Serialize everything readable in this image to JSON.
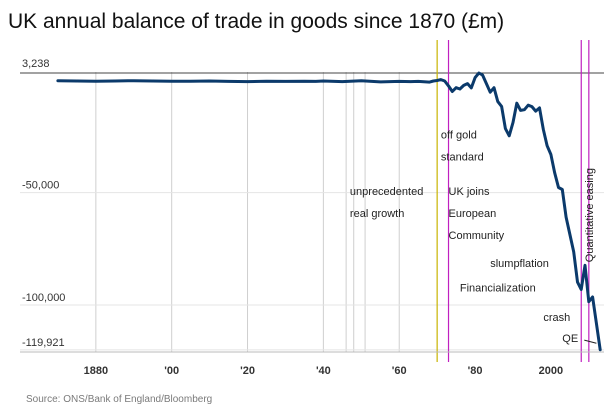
{
  "chart_data": {
    "type": "line",
    "title": "UK annual balance of trade in goods since 1870 (£m)",
    "source": "Source: ONS/Bank of England/Bloomberg",
    "xlabel": "",
    "ylabel": "",
    "xlim": [
      1860,
      2014
    ],
    "ylim": [
      -120000,
      3238
    ],
    "x_ticks": [
      {
        "value": 1880,
        "label": "1880"
      },
      {
        "value": 1900,
        "label": "'00"
      },
      {
        "value": 1920,
        "label": "'20"
      },
      {
        "value": 1940,
        "label": "'40"
      },
      {
        "value": 1960,
        "label": "'60"
      },
      {
        "value": 1980,
        "label": "'80"
      },
      {
        "value": 2000,
        "label": "2000"
      }
    ],
    "y_ticks": [
      {
        "value": 3238,
        "label": "3,238"
      },
      {
        "value": -50000,
        "label": "-50,000"
      },
      {
        "value": -100000,
        "label": "-100,000"
      },
      {
        "value": -119921,
        "label": "-119,921"
      }
    ],
    "grid": {
      "vertical_years": [
        1880,
        1900,
        1920,
        1940,
        1946,
        1948,
        1951,
        1960
      ]
    },
    "reference_lines": [
      {
        "year": 1970,
        "color": "#c8b400"
      },
      {
        "year": 1973,
        "color": "#c020c0"
      },
      {
        "year": 2008,
        "color": "#c020c0"
      },
      {
        "year": 2010,
        "color": "#c020c0"
      }
    ],
    "series": [
      {
        "color": "#0b3a6b",
        "x": [
          1870,
          1875,
          1880,
          1885,
          1890,
          1895,
          1900,
          1905,
          1910,
          1915,
          1920,
          1925,
          1930,
          1935,
          1938,
          1940,
          1945,
          1950,
          1955,
          1960,
          1963,
          1965,
          1967,
          1968,
          1969,
          1970,
          1971,
          1972,
          1973,
          1974,
          1975,
          1976,
          1977,
          1978,
          1979,
          1980,
          1981,
          1982,
          1983,
          1984,
          1985,
          1986,
          1987,
          1988,
          1989,
          1990,
          1991,
          1992,
          1993,
          1994,
          1995,
          1996,
          1997,
          1998,
          1999,
          2000,
          2001,
          2002,
          2003,
          2004,
          2005,
          2006,
          2007,
          2008,
          2009,
          2010,
          2011,
          2012,
          2013
        ],
        "values": [
          -200,
          -300,
          -400,
          -300,
          -200,
          -300,
          -400,
          -400,
          -300,
          -500,
          -600,
          -400,
          -500,
          -400,
          -500,
          -300,
          -600,
          -200,
          -700,
          -500,
          -600,
          -500,
          -700,
          -800,
          -300,
          -100,
          300,
          -300,
          -2500,
          -5000,
          -3300,
          -3900,
          -2300,
          -1500,
          -3400,
          1200,
          3238,
          2300,
          -1500,
          -5300,
          -3300,
          -9500,
          -11600,
          -21500,
          -24700,
          -18800,
          -10200,
          -13400,
          -13100,
          -11100,
          -11700,
          -13700,
          -12300,
          -21800,
          -29100,
          -33000,
          -41200,
          -47700,
          -48600,
          -60900,
          -68600,
          -76300,
          -89800,
          -93100,
          -82300,
          -98500,
          -96400,
          -108100,
          -119921
        ]
      }
    ],
    "annotations": [
      {
        "lines": [
          "off gold",
          "standard"
        ],
        "year": 1971,
        "y": -26000
      },
      {
        "lines": [
          "unprecedented",
          "real  growth"
        ],
        "year": 1947,
        "y": -51000
      },
      {
        "lines": [
          "UK joins",
          "European",
          "Community"
        ],
        "year": 1973,
        "y": -51000
      },
      {
        "lines": [
          "slumpflation"
        ],
        "year": 1984,
        "y": -83000
      },
      {
        "lines": [
          "Financialization"
        ],
        "year": 1976,
        "y": -94000
      },
      {
        "lines": [
          "crash"
        ],
        "year": 1998,
        "y": -107000
      },
      {
        "lines": [
          "QE"
        ],
        "year": 2003,
        "y": -116500
      },
      {
        "lines": [
          "Quantitative easing"
        ],
        "year": 2010,
        "y": -60000,
        "rotate": -90
      }
    ]
  }
}
